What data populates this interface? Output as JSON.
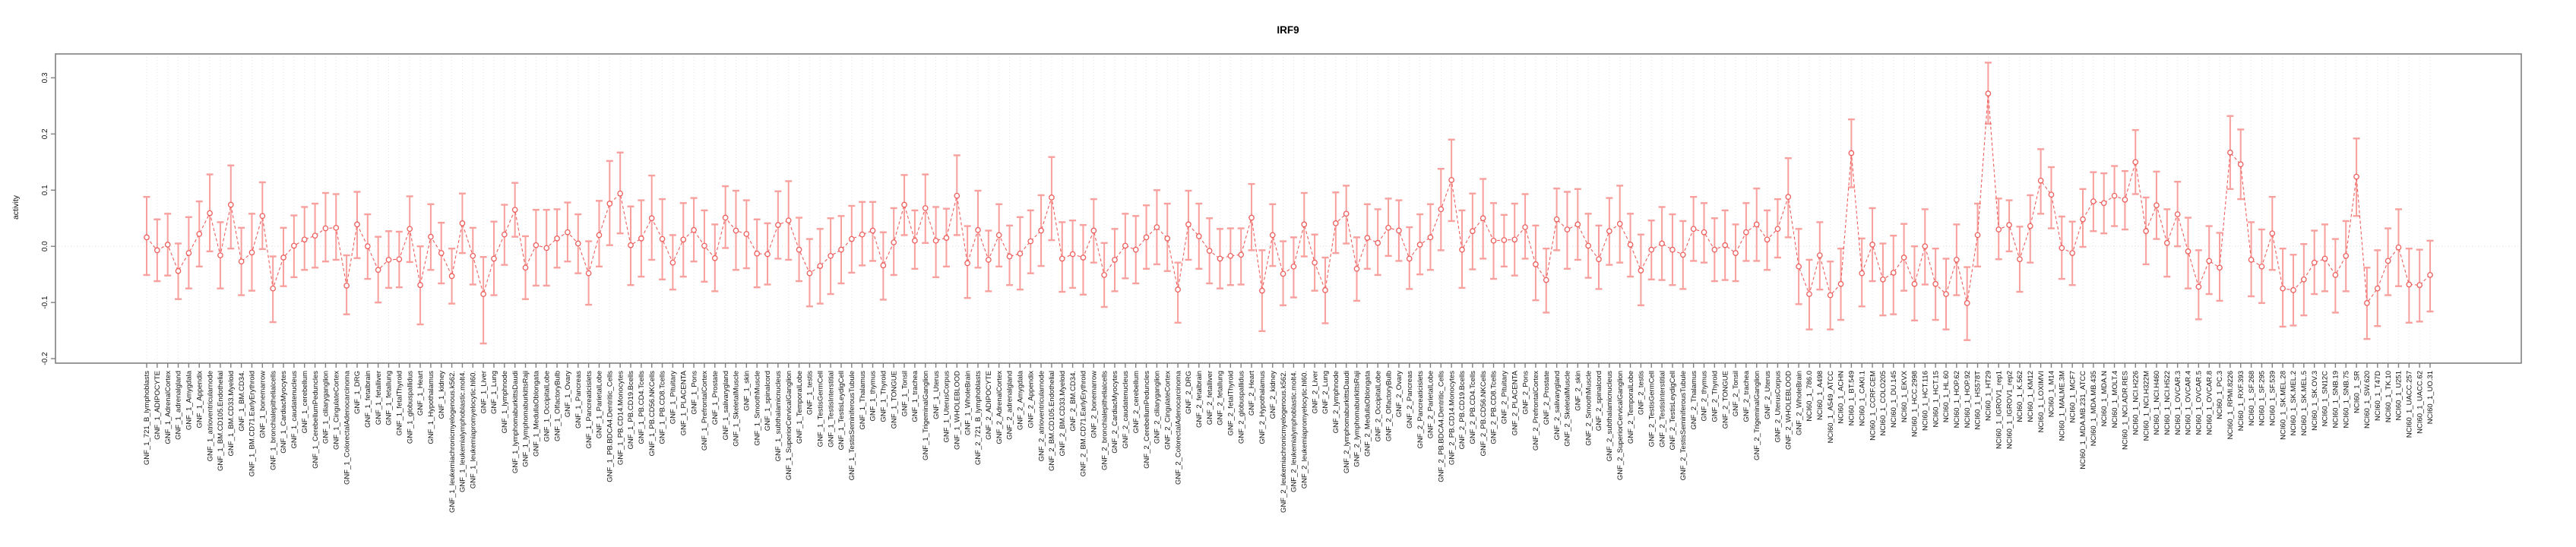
{
  "title": "IRF9",
  "chart_data": {
    "type": "line",
    "subtype": "points-with-error-bars",
    "title": "IRF9",
    "xlabel": "",
    "ylabel": "activity",
    "ylim": [
      -0.208,
      0.3425
    ],
    "yticks": [
      0.3,
      0.2,
      0.1,
      0.0,
      -0.1,
      -0.2
    ],
    "ytick_labels": [
      "0.3",
      "0.2",
      "0.1",
      "0.0",
      "-0.1",
      "-0.2"
    ],
    "grid": {
      "vertical_dotted_per_category": true,
      "zero_line_dotted": true
    },
    "legend": "none",
    "marker": "open-circle",
    "line_style": "dashed",
    "colors": {
      "error_bar": "#f7a09d",
      "series_line": "#ec5f5c",
      "marker": "#ec5f5c",
      "axis_box": "#808080",
      "gridline": "#e4e4e4",
      "zero_line": "#dedede",
      "text": "#111111"
    },
    "categories": [
      "GNF_1_721_B_lymphoblasts",
      "GNF_1_ADIPOCYTE",
      "GNF_1_AdrenalCortex",
      "GNF_1_adrenalgland",
      "GNF_1_Amygdala",
      "GNF_1_Appendix",
      "GNF_1_atrioventricularnode",
      "GNF_1_BM.CD105.Endothelial",
      "GNF_1_BM.CD33.Myeloid",
      "GNF_1_BM.CD34.",
      "GNF_1_BM.CD71.EarlyErythroid",
      "GNF_1_bonemarrow",
      "GNF_1_bronchialepithelialcells",
      "GNF_1_CardiacMyocytes",
      "GNF_1_caudatenucleus",
      "GNF_1_cerebellum",
      "GNF_1_CerebellumPeduncles",
      "GNF_1_ciliaryganglion",
      "GNF_1_CingulateCortex",
      "GNF_1_ColorectalAdenocarcinoma",
      "GNF_1_DRG",
      "GNF_1_fetalbrain",
      "GNF_1_fetalliver",
      "GNF_1_fetallung",
      "GNF_1_fetalThyroid",
      "GNF_1_globuspallidus",
      "GNF_1_Heart",
      "GNF_1_Hypothalamus",
      "GNF_1_kidney",
      "GNF_1_leukemiachronicmyelogenous.k562.",
      "GNF_1_leukemialymphoblastic.molt4.",
      "GNF_1_leukemiapromyelocytic.hl60.",
      "GNF_1_Liver",
      "GNF_1_Lung",
      "GNF_1_lymphnode",
      "GNF_1_lymphomaburkittsDaudi",
      "GNF_1_lymphomaburkittsRaji",
      "GNF_1_MedullaOblongata",
      "GNF_1_OccipitalLobe",
      "GNF_1_OlfactoryBulb",
      "GNF_1_Ovary",
      "GNF_1_Pancreas",
      "GNF_1_Pancreaticislets",
      "GNF_1_ParietalLobe",
      "GNF_1_PB.BDCA4.Dentritic_Cells",
      "GNF_1_PB.CD14.Monocytes",
      "GNF_1_PB.CD19.Bcells",
      "GNF_1_PB.CD4.Tcells",
      "GNF_1_PB.CD56.NKCells",
      "GNF_1_PB.CD8.Tcells",
      "GNF_1_Pituitary",
      "GNF_1_PLACENTA",
      "GNF_1_Pons",
      "GNF_1_PrefrontalCortex",
      "GNF_1_Prostate",
      "GNF_1_salivarygland",
      "GNF_1_SkeletalMuscle",
      "GNF_1_skin",
      "GNF_1_SmoothMuscle",
      "GNF_1_spinalcord",
      "GNF_1_subthalamicnucleus",
      "GNF_1_SuperiorCervicalGanglion",
      "GNF_1_TemporalLobe",
      "GNF_1_testis",
      "GNF_1_TestisGermCell",
      "GNF_1_TestisInterstitial",
      "GNF_1_TestisLeydigCell",
      "GNF_1_TestisSeminiferousTubule",
      "GNF_1_Thalamus",
      "GNF_1_thymus",
      "GNF_1_Thyroid",
      "GNF_1_TONGUE",
      "GNF_1_Tonsil",
      "GNF_1_trachea",
      "GNF_1_TrigeminalGanglion",
      "GNF_1_Uterus",
      "GNF_1_UterusCorpus",
      "GNF_1_WHOLEBLOOD",
      "GNF_1_WholeBrain",
      "GNF_2_721_B_lymphoblasts",
      "GNF_2_ADIPOCYTE",
      "GNF_2_AdrenalCortex",
      "GNF_2_adrenalgland",
      "GNF_2_Amygdala",
      "GNF_2_Appendix",
      "GNF_2_atrioventricularnode",
      "GNF_2_BM.CD105.Endothelial",
      "GNF_2_BM.CD33.Myeloid",
      "GNF_2_BM.CD34.",
      "GNF_2_BM.CD71.EarlyErythroid",
      "GNF_2_bonemarrow",
      "GNF_2_bronchialepithelialcells",
      "GNF_2_CardiacMyocytes",
      "GNF_2_caudatenucleus",
      "GNF_2_cerebellum",
      "GNF_2_CerebellumPeduncles",
      "GNF_2_ciliaryganglion",
      "GNF_2_CingulateCortex",
      "GNF_2_ColorectalAdenocarcinoma",
      "GNF_2_DRG",
      "GNF_2_fetalbrain",
      "GNF_2_fetalliver",
      "GNF_2_fetallung",
      "GNF_2_fetalThyroid",
      "GNF_2_globuspallidus",
      "GNF_2_Heart",
      "GNF_2_Hypothalamus",
      "GNF_2_kidney",
      "GNF_2_leukemiachronicmyelogenous.k562.",
      "GNF_2_leukemialymphoblastic.molt4.",
      "GNF_2_leukemiapromyelocytic.hl60.",
      "GNF_2_Liver",
      "GNF_2_Lung",
      "GNF_2_lymphnode",
      "GNF_2_lymphomaburkittsDaudi",
      "GNF_2_lymphomaburkittsRaji",
      "GNF_2_MedullaOblongata",
      "GNF_2_OccipitalLobe",
      "GNF_2_OlfactoryBulb",
      "GNF_2_Ovary",
      "GNF_2_Pancreas",
      "GNF_2_Pancreaticislets",
      "GNF_2_ParietalLobe",
      "GNF_2_PB.BDCA4.Dentritic_Cells",
      "GNF_2_PB.CD14.Monocytes",
      "GNF_2_PB.CD19.Bcells",
      "GNF_2_PB.CD4.Tcells",
      "GNF_2_PB.CD56.NKCells",
      "GNF_2_PB.CD8.Tcells",
      "GNF_2_Pituitary",
      "GNF_2_PLACENTA",
      "GNF_2_Pons",
      "GNF_2_PrefrontalCortex",
      "GNF_2_Prostate",
      "GNF_2_salivarygland",
      "GNF_2_SkeletalMuscle",
      "GNF_2_skin",
      "GNF_2_SmoothMuscle",
      "GNF_2_spinalcord",
      "GNF_2_subthalamicnucleus",
      "GNF_2_SuperiorCervicalGanglion",
      "GNF_2_TemporalLobe",
      "GNF_2_testis",
      "GNF_2_TestisGermCell",
      "GNF_2_TestisInterstitial",
      "GNF_2_TestisLeydigCell",
      "GNF_2_TestisSeminiferousTubule",
      "GNF_2_Thalamus",
      "GNF_2_thymus",
      "GNF_2_Thyroid",
      "GNF_2_TONGUE",
      "GNF_2_Tonsil",
      "GNF_2_trachea",
      "GNF_2_TrigeminalGanglion",
      "GNF_2_Uterus",
      "GNF_2_UterusCorpus",
      "GNF_2_WHOLEBLOOD",
      "GNF_2_WholeBrain",
      "NCI60_1_786.0",
      "NCI60_1_A498",
      "NCI60_1_A549_ATCC",
      "NCI60_1_ACHN",
      "NCI60_1_BT.549",
      "NCI60_1_CAKI.1",
      "NCI60_1_CCRF.CEM",
      "NCI60_1_COLO205",
      "NCI60_1_DU.145",
      "NCI60_1_EKVX",
      "NCI60_1_HCC.2998",
      "NCI60_1_HCT.116",
      "NCI60_1_HCT.15",
      "NCI60_1_HL.60",
      "NCI60_1_HOP.62",
      "NCI60_1_HOP.92",
      "NCI60_1_HS578T",
      "NCI60_1_HT29",
      "NCI60_1_IGROV1_rep1",
      "NCI60_1_IGROV1_rep2",
      "NCI60_1_K.562",
      "NCI60_1_KM12",
      "NCI60_1_LOXIMVI",
      "NCI60_1_M14",
      "NCI60_1_MALME.3M",
      "NCI60_1_MCF7",
      "NCI60_1_MDA.MB.231_ATCC",
      "NCI60_1_MDA.MB.435",
      "NCI60_1_MDA.N",
      "NCI60_1_MOLT.4",
      "NCI60_1_NCI.ADR.RES",
      "NCI60_1_NCI.H226",
      "NCI60_1_NCI.H322M",
      "NCI60_1_NCI.H460",
      "NCI60_1_NCI.H522",
      "NCI60_1_OVCAR.3",
      "NCI60_1_OVCAR.4",
      "NCI60_1_OVCAR.5",
      "NCI60_1_OVCAR.8",
      "NCI60_1_PC.3",
      "NCI60_1_RPMI.8226",
      "NCI60_1_RXF.393",
      "NCI60_1_SF.268",
      "NCI60_1_SF.295",
      "NCI60_1_SF.539",
      "NCI60_1_SK.MEL.28",
      "NCI60_1_SK.MEL.2",
      "NCI60_1_SK.MEL.5",
      "NCI60_1_SK.OV.3",
      "NCI60_1_SN12C",
      "NCI60_1_SNB.19",
      "NCI60_1_SNB.75",
      "NCI60_1_SR",
      "NCI60_1_SW.620",
      "NCI60_1_T47D",
      "NCI60_1_TK.10",
      "NCI60_1_U251",
      "NCI60_1_UACC.257",
      "NCI60_1_UACC.62",
      "NCI60_1_UO.31"
    ],
    "series": [
      {
        "name": "activity",
        "values": [
          0.016,
          -0.007,
          0.003,
          -0.044,
          -0.012,
          0.022,
          0.059,
          -0.016,
          0.074,
          -0.027,
          -0.011,
          0.054,
          -0.075,
          -0.02,
          0.001,
          0.012,
          0.019,
          0.032,
          0.033,
          -0.07,
          0.039,
          0.0,
          -0.042,
          -0.024,
          -0.023,
          0.031,
          -0.069,
          0.017,
          -0.012,
          -0.053,
          0.041,
          -0.017,
          -0.085,
          -0.022,
          0.021,
          0.065,
          -0.038,
          0.002,
          -0.003,
          0.014,
          0.025,
          0.005,
          -0.048,
          0.02,
          0.076,
          0.094,
          0.002,
          0.014,
          0.05,
          0.013,
          -0.029,
          0.012,
          0.029,
          0.001,
          -0.021,
          0.051,
          0.028,
          0.022,
          -0.013,
          -0.014,
          0.038,
          0.046,
          -0.006,
          -0.048,
          -0.035,
          -0.017,
          -0.006,
          0.013,
          0.021,
          0.028,
          -0.034,
          0.007,
          0.074,
          0.01,
          0.068,
          0.01,
          0.015,
          0.09,
          -0.03,
          0.029,
          -0.024,
          0.02,
          -0.018,
          -0.013,
          0.009,
          0.028,
          0.087,
          -0.022,
          -0.014,
          -0.02,
          0.028,
          -0.051,
          -0.024,
          0.001,
          -0.006,
          0.016,
          0.034,
          0.014,
          -0.077,
          0.039,
          0.018,
          -0.008,
          -0.022,
          -0.017,
          -0.015,
          0.051,
          -0.079,
          0.02,
          -0.049,
          -0.036,
          0.039,
          -0.029,
          -0.078,
          0.041,
          0.058,
          -0.04,
          0.015,
          0.006,
          0.033,
          0.028,
          -0.022,
          0.003,
          0.016,
          0.066,
          0.118,
          -0.006,
          0.027,
          0.05,
          0.01,
          0.011,
          0.012,
          0.034,
          -0.032,
          -0.06,
          0.048,
          0.03,
          0.039,
          0.001,
          -0.023,
          0.027,
          0.04,
          0.003,
          -0.043,
          -0.006,
          0.005,
          -0.006,
          -0.015,
          0.031,
          0.025,
          -0.006,
          0.002,
          -0.012,
          0.025,
          0.039,
          0.012,
          0.031,
          0.088,
          -0.036,
          -0.085,
          -0.016,
          -0.087,
          -0.067,
          0.166,
          -0.048,
          0.003,
          -0.059,
          -0.047,
          -0.02,
          -0.067,
          0.0,
          -0.067,
          -0.085,
          -0.024,
          -0.101,
          0.02,
          0.272,
          0.03,
          0.038,
          -0.023,
          0.036,
          0.117,
          0.092,
          -0.003,
          -0.012,
          0.048,
          0.08,
          0.077,
          0.09,
          0.083,
          0.15,
          0.027,
          0.073,
          0.006,
          0.057,
          -0.009,
          -0.072,
          -0.026,
          -0.038,
          0.167,
          0.146,
          -0.024,
          -0.036,
          0.023,
          -0.075,
          -0.078,
          -0.059,
          -0.029,
          -0.022,
          -0.051,
          -0.017,
          0.124,
          -0.101,
          -0.075,
          -0.026,
          -0.002,
          -0.068,
          -0.069,
          -0.051
        ],
        "err_low": [
          -0.051,
          -0.062,
          -0.052,
          -0.094,
          -0.075,
          -0.036,
          -0.009,
          -0.075,
          -0.004,
          -0.087,
          -0.079,
          -0.005,
          -0.135,
          -0.071,
          -0.055,
          -0.042,
          -0.038,
          -0.027,
          -0.024,
          -0.121,
          -0.021,
          -0.058,
          -0.1,
          -0.074,
          -0.073,
          -0.028,
          -0.139,
          -0.042,
          -0.066,
          -0.102,
          -0.012,
          -0.068,
          -0.173,
          -0.087,
          -0.033,
          0.017,
          -0.094,
          -0.07,
          -0.07,
          -0.038,
          -0.027,
          -0.048,
          -0.104,
          -0.036,
          0.002,
          0.023,
          -0.069,
          -0.054,
          -0.024,
          -0.059,
          -0.077,
          -0.054,
          -0.027,
          -0.063,
          -0.08,
          -0.003,
          -0.042,
          -0.039,
          -0.073,
          -0.068,
          -0.022,
          -0.024,
          -0.062,
          -0.107,
          -0.102,
          -0.085,
          -0.066,
          -0.047,
          -0.034,
          -0.026,
          -0.095,
          -0.051,
          0.02,
          -0.04,
          0.006,
          -0.055,
          -0.036,
          0.02,
          -0.092,
          -0.038,
          -0.08,
          -0.036,
          -0.069,
          -0.077,
          -0.048,
          -0.035,
          0.011,
          -0.081,
          -0.074,
          -0.086,
          -0.029,
          -0.108,
          -0.08,
          -0.057,
          -0.066,
          -0.04,
          -0.032,
          -0.044,
          -0.136,
          -0.024,
          -0.04,
          -0.066,
          -0.075,
          -0.069,
          -0.068,
          -0.007,
          -0.151,
          -0.035,
          -0.105,
          -0.091,
          -0.018,
          -0.079,
          -0.137,
          -0.012,
          0.005,
          -0.097,
          -0.04,
          -0.051,
          -0.017,
          -0.026,
          -0.076,
          -0.05,
          -0.042,
          -0.007,
          0.045,
          -0.074,
          -0.041,
          -0.022,
          -0.058,
          -0.036,
          -0.052,
          -0.022,
          -0.096,
          -0.118,
          -0.007,
          -0.04,
          -0.024,
          -0.056,
          -0.076,
          -0.033,
          -0.029,
          -0.054,
          -0.105,
          -0.059,
          -0.06,
          -0.069,
          -0.076,
          -0.026,
          -0.029,
          -0.062,
          -0.06,
          -0.062,
          -0.026,
          -0.026,
          -0.042,
          -0.02,
          0.016,
          -0.103,
          -0.148,
          -0.077,
          -0.148,
          -0.131,
          0.105,
          -0.107,
          -0.062,
          -0.123,
          -0.121,
          -0.079,
          -0.132,
          -0.068,
          -0.131,
          -0.148,
          -0.087,
          -0.167,
          -0.036,
          0.218,
          -0.023,
          -0.009,
          -0.081,
          -0.029,
          0.058,
          0.032,
          -0.058,
          -0.069,
          -0.001,
          0.027,
          0.023,
          0.036,
          0.03,
          0.093,
          -0.032,
          0.013,
          -0.054,
          0.0,
          -0.075,
          -0.13,
          -0.085,
          -0.097,
          0.102,
          0.084,
          -0.089,
          -0.101,
          -0.042,
          -0.143,
          -0.141,
          -0.123,
          -0.085,
          -0.08,
          -0.118,
          -0.08,
          0.054,
          -0.165,
          -0.142,
          -0.087,
          -0.071,
          -0.136,
          -0.134,
          -0.116
        ],
        "err_high": [
          0.088,
          0.048,
          0.058,
          0.005,
          0.052,
          0.08,
          0.128,
          0.043,
          0.144,
          0.033,
          0.058,
          0.114,
          -0.018,
          0.033,
          0.055,
          0.07,
          0.076,
          0.095,
          0.093,
          -0.016,
          0.097,
          0.057,
          0.017,
          0.027,
          0.026,
          0.089,
          0.0,
          0.075,
          0.042,
          -0.004,
          0.094,
          0.033,
          -0.019,
          0.044,
          0.074,
          0.113,
          0.018,
          0.065,
          0.065,
          0.066,
          0.078,
          0.057,
          0.009,
          0.081,
          0.152,
          0.167,
          0.071,
          0.082,
          0.126,
          0.084,
          0.02,
          0.077,
          0.086,
          0.064,
          0.039,
          0.107,
          0.099,
          0.082,
          0.048,
          0.041,
          0.098,
          0.116,
          0.051,
          0.013,
          0.031,
          0.05,
          0.054,
          0.072,
          0.079,
          0.079,
          0.025,
          0.068,
          0.127,
          0.064,
          0.128,
          0.07,
          0.067,
          0.162,
          0.036,
          0.099,
          0.028,
          0.075,
          0.037,
          0.052,
          0.064,
          0.091,
          0.159,
          0.043,
          0.046,
          0.038,
          0.084,
          0.006,
          0.031,
          0.058,
          0.054,
          0.073,
          0.1,
          0.076,
          -0.029,
          0.099,
          0.076,
          0.05,
          0.031,
          0.032,
          0.032,
          0.111,
          -0.007,
          0.075,
          0.009,
          0.016,
          0.095,
          0.021,
          -0.02,
          0.096,
          0.108,
          0.016,
          0.075,
          0.066,
          0.085,
          0.082,
          0.034,
          0.057,
          0.075,
          0.138,
          0.19,
          0.064,
          0.094,
          0.12,
          0.077,
          0.056,
          0.076,
          0.093,
          0.037,
          -0.004,
          0.103,
          0.097,
          0.102,
          0.058,
          0.037,
          0.086,
          0.108,
          0.058,
          0.021,
          0.046,
          0.07,
          0.057,
          0.045,
          0.088,
          0.077,
          0.05,
          0.064,
          0.039,
          0.077,
          0.103,
          0.064,
          0.084,
          0.157,
          0.031,
          -0.024,
          0.043,
          -0.027,
          -0.004,
          0.226,
          0.014,
          0.068,
          0.005,
          0.019,
          0.04,
          0.0,
          0.066,
          -0.004,
          -0.022,
          0.039,
          -0.037,
          0.076,
          0.327,
          0.085,
          0.082,
          0.035,
          0.091,
          0.173,
          0.141,
          0.053,
          0.044,
          0.102,
          0.132,
          0.13,
          0.143,
          0.134,
          0.207,
          0.087,
          0.133,
          0.066,
          0.115,
          0.051,
          -0.007,
          0.036,
          0.024,
          0.232,
          0.208,
          0.043,
          0.03,
          0.088,
          -0.004,
          -0.015,
          0.004,
          0.028,
          0.039,
          0.013,
          0.045,
          0.192,
          -0.038,
          -0.007,
          0.032,
          0.066,
          -0.004,
          -0.006,
          0.01
        ]
      }
    ]
  }
}
